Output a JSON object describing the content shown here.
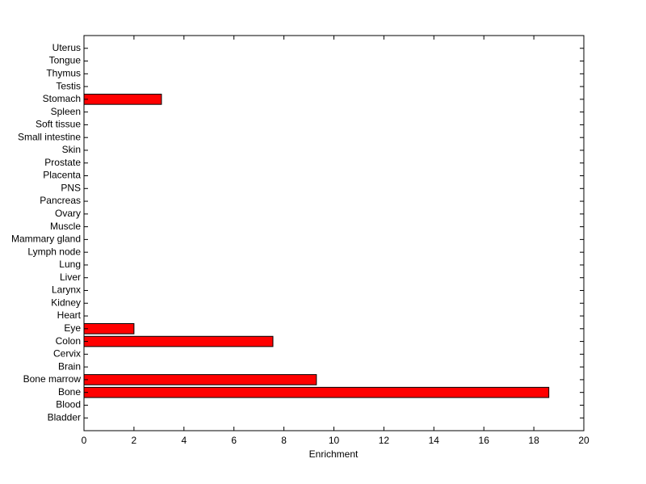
{
  "chart_data": {
    "type": "barh",
    "xlabel": "Enrichment",
    "categories": [
      "Bladder",
      "Blood",
      "Bone",
      "Bone marrow",
      "Brain",
      "Cervix",
      "Colon",
      "Eye",
      "Heart",
      "Kidney",
      "Larynx",
      "Liver",
      "Lung",
      "Lymph node",
      "Mammary gland",
      "Muscle",
      "Ovary",
      "Pancreas",
      "PNS",
      "Placenta",
      "Prostate",
      "Skin",
      "Small intestine",
      "Soft tissue",
      "Spleen",
      "Stomach",
      "Testis",
      "Thymus",
      "Tongue",
      "Uterus"
    ],
    "values": [
      0,
      0,
      18.6,
      9.3,
      0,
      0,
      7.56,
      2.0,
      0,
      0,
      0,
      0,
      0,
      0,
      0,
      0,
      0,
      0,
      0,
      0,
      0,
      0,
      0,
      0,
      0,
      3.1,
      0,
      0,
      0,
      0
    ],
    "color": "#ff0000",
    "xlim": [
      0,
      20
    ],
    "xticks": [
      0,
      2,
      4,
      6,
      8,
      10,
      12,
      14,
      16,
      18,
      20
    ]
  }
}
